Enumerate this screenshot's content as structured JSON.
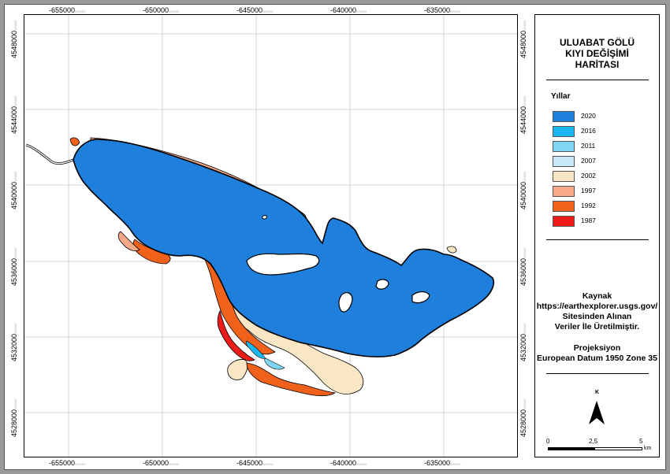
{
  "map": {
    "x_ticks": [
      {
        "label": "-655000",
        "suffix": "000000"
      },
      {
        "label": "-650000",
        "suffix": "000000"
      },
      {
        "label": "-645000",
        "suffix": "000000"
      },
      {
        "label": "-640000",
        "suffix": "000000"
      },
      {
        "label": "-635000",
        "suffix": "000000"
      }
    ],
    "y_ticks": [
      {
        "label": "4548000",
        "suffix": "000000"
      },
      {
        "label": "4544000",
        "suffix": "000000"
      },
      {
        "label": "4540000",
        "suffix": "000000"
      },
      {
        "label": "4536000",
        "suffix": "000000"
      },
      {
        "label": "4532000",
        "suffix": "000000"
      },
      {
        "label": "4528000",
        "suffix": "000000"
      }
    ]
  },
  "title": {
    "line1": "ULUABAT GÖLÜ",
    "line2": "KIYI DEĞİŞİMİ",
    "line3": "HARİTASI"
  },
  "legend": {
    "heading": "Yıllar",
    "items": [
      {
        "label": "2020",
        "color": "#1f7fdc"
      },
      {
        "label": "2016",
        "color": "#19b7ee"
      },
      {
        "label": "2011",
        "color": "#7fd6f2"
      },
      {
        "label": "2007",
        "color": "#c8e7f7"
      },
      {
        "label": "2002",
        "color": "#f8e6c4"
      },
      {
        "label": "1997",
        "color": "#f7a98a"
      },
      {
        "label": "1992",
        "color": "#f0611b"
      },
      {
        "label": "1987",
        "color": "#ee1b1b"
      }
    ]
  },
  "source": {
    "heading": "Kaynak",
    "line1": "https://earthexplorer.usgs.gov/",
    "line2": "Sitesinden Alınan",
    "line3": "Veriler İle Üretilmiştir."
  },
  "projection": {
    "heading": "Projeksiyon",
    "text": "European Datum 1950 Zone 35"
  },
  "north_arrow": {
    "label": "K"
  },
  "scale_bar": {
    "labels": [
      "0",
      "2,5",
      "5"
    ],
    "unit": "km"
  }
}
